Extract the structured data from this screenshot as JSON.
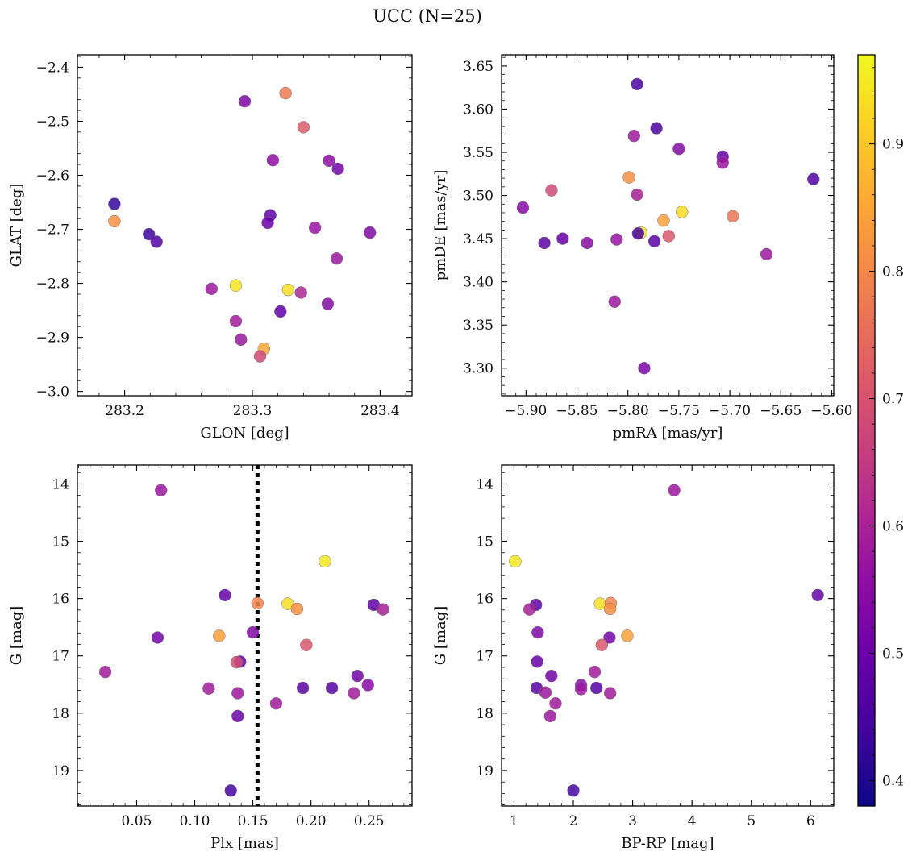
{
  "title": "UCC (N=25)",
  "colorbar": {
    "ticks": [
      "0.4",
      "0.5",
      "0.6",
      "0.7",
      "0.8",
      "0.9"
    ],
    "range": [
      0.38,
      0.97
    ],
    "cmap": "plasma"
  },
  "chart_data": [
    {
      "type": "scatter",
      "xlabel": "GLON [deg]",
      "ylabel": "GLAT [deg]",
      "xlim": [
        283.163,
        283.425
      ],
      "ylim": [
        -3.008,
        -2.377
      ],
      "xticks": [
        "283.2",
        "283.3",
        "283.4"
      ],
      "yticks": [
        "−2.4",
        "−2.5",
        "−2.6",
        "−2.7",
        "−2.8",
        "−2.9",
        "−3.0"
      ],
      "points": [
        {
          "x": 283.192,
          "y": -2.653,
          "c": 0.41
        },
        {
          "x": 283.192,
          "y": -2.685,
          "c": 0.82
        },
        {
          "x": 283.219,
          "y": -2.709,
          "c": 0.42
        },
        {
          "x": 283.225,
          "y": -2.723,
          "c": 0.45
        },
        {
          "x": 283.294,
          "y": -2.463,
          "c": 0.52
        },
        {
          "x": 283.326,
          "y": -2.448,
          "c": 0.78
        },
        {
          "x": 283.34,
          "y": -2.511,
          "c": 0.72
        },
        {
          "x": 283.316,
          "y": -2.572,
          "c": 0.55
        },
        {
          "x": 283.36,
          "y": -2.573,
          "c": 0.55
        },
        {
          "x": 283.367,
          "y": -2.588,
          "c": 0.5
        },
        {
          "x": 283.314,
          "y": -2.674,
          "c": 0.47
        },
        {
          "x": 283.312,
          "y": -2.688,
          "c": 0.48
        },
        {
          "x": 283.349,
          "y": -2.697,
          "c": 0.56
        },
        {
          "x": 283.392,
          "y": -2.706,
          "c": 0.52
        },
        {
          "x": 283.366,
          "y": -2.754,
          "c": 0.57
        },
        {
          "x": 283.268,
          "y": -2.81,
          "c": 0.57
        },
        {
          "x": 283.287,
          "y": -2.804,
          "c": 0.96
        },
        {
          "x": 283.328,
          "y": -2.812,
          "c": 0.95
        },
        {
          "x": 283.338,
          "y": -2.817,
          "c": 0.6
        },
        {
          "x": 283.359,
          "y": -2.838,
          "c": 0.53
        },
        {
          "x": 283.322,
          "y": -2.852,
          "c": 0.47
        },
        {
          "x": 283.287,
          "y": -2.87,
          "c": 0.58
        },
        {
          "x": 283.291,
          "y": -2.904,
          "c": 0.57
        },
        {
          "x": 283.309,
          "y": -2.921,
          "c": 0.86
        },
        {
          "x": 283.306,
          "y": -2.935,
          "c": 0.68
        }
      ]
    },
    {
      "type": "scatter",
      "xlabel": "pmRA [mas/yr]",
      "ylabel": "pmDE [mas/yr]",
      "xlim": [
        -5.924,
        -5.598
      ],
      "ylim": [
        3.268,
        3.663
      ],
      "xticks": [
        "−5.90",
        "−5.85",
        "−5.80",
        "−5.75",
        "−5.70",
        "−5.65",
        "−5.60"
      ],
      "yticks": [
        "3.65",
        "3.60",
        "3.55",
        "3.50",
        "3.45",
        "3.40",
        "3.35",
        "3.30"
      ],
      "points": [
        {
          "x": -5.791,
          "y": 3.629,
          "c": 0.44
        },
        {
          "x": -5.772,
          "y": 3.578,
          "c": 0.44
        },
        {
          "x": -5.794,
          "y": 3.569,
          "c": 0.58
        },
        {
          "x": -5.75,
          "y": 3.554,
          "c": 0.53
        },
        {
          "x": -5.707,
          "y": 3.545,
          "c": 0.47
        },
        {
          "x": -5.707,
          "y": 3.538,
          "c": 0.57
        },
        {
          "x": -5.618,
          "y": 3.519,
          "c": 0.45
        },
        {
          "x": -5.799,
          "y": 3.521,
          "c": 0.82
        },
        {
          "x": -5.791,
          "y": 3.501,
          "c": 0.59
        },
        {
          "x": -5.875,
          "y": 3.506,
          "c": 0.68
        },
        {
          "x": -5.903,
          "y": 3.486,
          "c": 0.53
        },
        {
          "x": -5.747,
          "y": 3.481,
          "c": 0.94
        },
        {
          "x": -5.697,
          "y": 3.476,
          "c": 0.77
        },
        {
          "x": -5.765,
          "y": 3.471,
          "c": 0.85
        },
        {
          "x": -5.787,
          "y": 3.457,
          "c": 0.96
        },
        {
          "x": -5.79,
          "y": 3.456,
          "c": 0.44
        },
        {
          "x": -5.76,
          "y": 3.453,
          "c": 0.71
        },
        {
          "x": -5.864,
          "y": 3.45,
          "c": 0.48
        },
        {
          "x": -5.811,
          "y": 3.449,
          "c": 0.56
        },
        {
          "x": -5.774,
          "y": 3.447,
          "c": 0.46
        },
        {
          "x": -5.882,
          "y": 3.445,
          "c": 0.46
        },
        {
          "x": -5.84,
          "y": 3.445,
          "c": 0.54
        },
        {
          "x": -5.664,
          "y": 3.432,
          "c": 0.57
        },
        {
          "x": -5.813,
          "y": 3.377,
          "c": 0.57
        },
        {
          "x": -5.784,
          "y": 3.3,
          "c": 0.51
        }
      ]
    },
    {
      "type": "scatter",
      "xlabel": "Plx [mas]",
      "ylabel": "G [mag]",
      "xlim": [
        -0.001,
        0.287
      ],
      "ylim": [
        19.62,
        13.67
      ],
      "yinvert": true,
      "xticks": [
        "0.05",
        "0.10",
        "0.15",
        "0.20",
        "0.25"
      ],
      "yticks": [
        "14",
        "15",
        "16",
        "17",
        "18",
        "19"
      ],
      "vline": 0.154,
      "points": [
        {
          "x": 0.071,
          "y": 14.11,
          "c": 0.57
        },
        {
          "x": 0.212,
          "y": 15.35,
          "c": 0.96
        },
        {
          "x": 0.126,
          "y": 15.94,
          "c": 0.48
        },
        {
          "x": 0.254,
          "y": 16.11,
          "c": 0.47
        },
        {
          "x": 0.18,
          "y": 16.09,
          "c": 0.95
        },
        {
          "x": 0.154,
          "y": 16.08,
          "c": 0.8
        },
        {
          "x": 0.188,
          "y": 16.18,
          "c": 0.82
        },
        {
          "x": 0.262,
          "y": 16.19,
          "c": 0.59
        },
        {
          "x": 0.15,
          "y": 16.59,
          "c": 0.52
        },
        {
          "x": 0.068,
          "y": 16.68,
          "c": 0.5
        },
        {
          "x": 0.121,
          "y": 16.65,
          "c": 0.85
        },
        {
          "x": 0.196,
          "y": 16.81,
          "c": 0.71
        },
        {
          "x": 0.139,
          "y": 17.1,
          "c": 0.48
        },
        {
          "x": 0.136,
          "y": 17.11,
          "c": 0.69
        },
        {
          "x": 0.023,
          "y": 17.28,
          "c": 0.58
        },
        {
          "x": 0.24,
          "y": 17.35,
          "c": 0.5
        },
        {
          "x": 0.249,
          "y": 17.51,
          "c": 0.54
        },
        {
          "x": 0.112,
          "y": 17.57,
          "c": 0.58
        },
        {
          "x": 0.193,
          "y": 17.56,
          "c": 0.46
        },
        {
          "x": 0.218,
          "y": 17.56,
          "c": 0.45
        },
        {
          "x": 0.137,
          "y": 17.65,
          "c": 0.57
        },
        {
          "x": 0.237,
          "y": 17.65,
          "c": 0.58
        },
        {
          "x": 0.17,
          "y": 17.83,
          "c": 0.58
        },
        {
          "x": 0.137,
          "y": 18.05,
          "c": 0.49
        },
        {
          "x": 0.131,
          "y": 19.35,
          "c": 0.43
        }
      ]
    },
    {
      "type": "scatter",
      "xlabel": "BP-RP [mag]",
      "ylabel": "G [mag]",
      "xlim": [
        0.79,
        6.39
      ],
      "ylim": [
        19.62,
        13.67
      ],
      "yinvert": true,
      "xticks": [
        "1",
        "2",
        "3",
        "4",
        "5",
        "6"
      ],
      "yticks": [
        "14",
        "15",
        "16",
        "17",
        "18",
        "19"
      ],
      "points": [
        {
          "x": 3.7,
          "y": 14.11,
          "c": 0.57
        },
        {
          "x": 1.02,
          "y": 15.35,
          "c": 0.96
        },
        {
          "x": 6.12,
          "y": 15.94,
          "c": 0.48
        },
        {
          "x": 1.37,
          "y": 16.11,
          "c": 0.47
        },
        {
          "x": 2.45,
          "y": 16.09,
          "c": 0.95
        },
        {
          "x": 2.63,
          "y": 16.08,
          "c": 0.8
        },
        {
          "x": 2.62,
          "y": 16.18,
          "c": 0.82
        },
        {
          "x": 1.26,
          "y": 16.19,
          "c": 0.59
        },
        {
          "x": 1.4,
          "y": 16.59,
          "c": 0.52
        },
        {
          "x": 2.61,
          "y": 16.68,
          "c": 0.5
        },
        {
          "x": 2.91,
          "y": 16.65,
          "c": 0.85
        },
        {
          "x": 2.48,
          "y": 16.81,
          "c": 0.71
        },
        {
          "x": 1.39,
          "y": 17.1,
          "c": 0.48
        },
        {
          "x": 1.63,
          "y": 17.35,
          "c": 0.5
        },
        {
          "x": 2.36,
          "y": 17.28,
          "c": 0.58
        },
        {
          "x": 2.13,
          "y": 17.51,
          "c": 0.54
        },
        {
          "x": 2.13,
          "y": 17.58,
          "c": 0.57
        },
        {
          "x": 1.38,
          "y": 17.56,
          "c": 0.46
        },
        {
          "x": 2.39,
          "y": 17.56,
          "c": 0.45
        },
        {
          "x": 1.53,
          "y": 17.64,
          "c": 0.57
        },
        {
          "x": 2.62,
          "y": 17.65,
          "c": 0.58
        },
        {
          "x": 1.7,
          "y": 17.83,
          "c": 0.58
        },
        {
          "x": 1.61,
          "y": 18.05,
          "c": 0.57
        },
        {
          "x": 2.0,
          "y": 19.35,
          "c": 0.43
        }
      ]
    }
  ]
}
